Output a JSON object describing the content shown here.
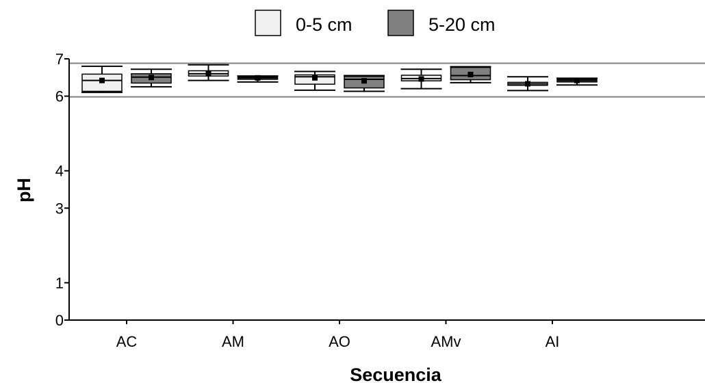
{
  "chart_data": {
    "type": "box",
    "xlabel": "Secuencia",
    "ylabel": "pH",
    "categories": [
      "AC",
      "AM",
      "AO",
      "AMv",
      "AI"
    ],
    "ylim": [
      0,
      7
    ],
    "y_ticks": [
      {
        "value": 0,
        "label": "0"
      },
      {
        "value": 1,
        "label": "1"
      },
      {
        "value": 3,
        "label": "3"
      },
      {
        "value": 4,
        "label": "4"
      },
      {
        "value": 6,
        "label": "6"
      },
      {
        "value": 7,
        "label": "7"
      }
    ],
    "reference_lines": [
      5.98,
      6.88
    ],
    "legend_position": "top",
    "series": [
      {
        "name": "0-5 cm",
        "color": "#f0f0f0",
        "boxes": [
          {
            "min": 6.1,
            "q1": 6.13,
            "median": 6.42,
            "q3": 6.59,
            "max": 6.8,
            "mean": 6.42
          },
          {
            "min": 6.42,
            "q1": 6.54,
            "median": 6.6,
            "q3": 6.68,
            "max": 6.84,
            "mean": 6.6
          },
          {
            "min": 6.16,
            "q1": 6.32,
            "median": 6.52,
            "q3": 6.57,
            "max": 6.66,
            "mean": 6.49
          },
          {
            "min": 6.2,
            "q1": 6.41,
            "median": 6.47,
            "q3": 6.56,
            "max": 6.72,
            "mean": 6.46
          },
          {
            "min": 6.15,
            "q1": 6.29,
            "median": 6.33,
            "q3": 6.37,
            "max": 6.52,
            "mean": 6.33
          }
        ]
      },
      {
        "name": "5-20 cm",
        "color": "#808080",
        "boxes": [
          {
            "min": 6.25,
            "q1": 6.35,
            "median": 6.51,
            "q3": 6.6,
            "max": 6.72,
            "mean": 6.5
          },
          {
            "min": 6.38,
            "q1": 6.45,
            "median": 6.49,
            "q3": 6.52,
            "max": 6.54,
            "mean": 6.49
          },
          {
            "min": 6.13,
            "q1": 6.22,
            "median": 6.45,
            "q3": 6.53,
            "max": 6.55,
            "mean": 6.41
          },
          {
            "min": 6.36,
            "q1": 6.44,
            "median": 6.55,
            "q3": 6.77,
            "max": 6.79,
            "mean": 6.58
          },
          {
            "min": 6.3,
            "q1": 6.38,
            "median": 6.42,
            "q3": 6.45,
            "max": 6.48,
            "mean": 6.42
          }
        ]
      }
    ]
  }
}
